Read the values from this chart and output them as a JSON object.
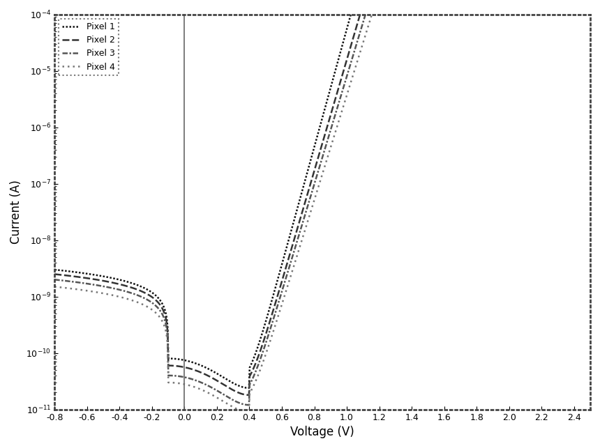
{
  "title": "",
  "xlabel": "Voltage (V)",
  "ylabel": "Current (A)",
  "xlim": [
    -0.8,
    2.5
  ],
  "ylim": [
    1e-11,
    0.0001
  ],
  "legend_labels": [
    "Pixel 1",
    "Pixel 2",
    "Pixel 3",
    "Pixel 4"
  ],
  "background_color": "#ffffff",
  "vline_x": 0.0,
  "figsize": [
    8.6,
    6.43
  ],
  "dpi": 100,
  "pixel_params": [
    {
      "I_rev": 3e-09,
      "I_min": 8e-11,
      "I_sat": 3e-11,
      "ideality": 1.6,
      "v_on": 0.65
    },
    {
      "I_rev": 2.5e-09,
      "I_min": 6e-11,
      "I_sat": 2e-11,
      "ideality": 1.7,
      "v_on": 0.7
    },
    {
      "I_rev": 2e-09,
      "I_min": 4e-11,
      "I_sat": 1.5e-11,
      "ideality": 1.75,
      "v_on": 0.72
    },
    {
      "I_rev": 1.5e-09,
      "I_min": 3e-11,
      "I_sat": 1e-11,
      "ideality": 1.8,
      "v_on": 0.75
    }
  ],
  "line_props": [
    {
      "color": "#111111",
      "linestyle_key": "densedot",
      "linewidth": 1.8
    },
    {
      "color": "#333333",
      "linestyle_key": "dash",
      "linewidth": 1.8
    },
    {
      "color": "#555555",
      "linestyle_key": "dashdot",
      "linewidth": 1.8
    },
    {
      "color": "#777777",
      "linestyle_key": "loosedot",
      "linewidth": 1.8
    }
  ]
}
